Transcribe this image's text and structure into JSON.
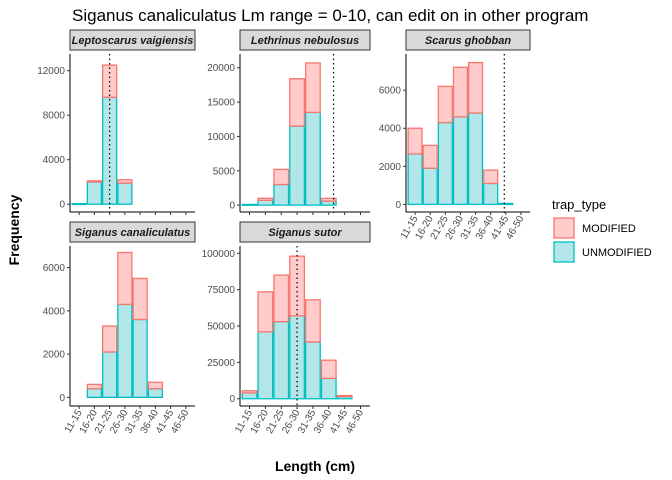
{
  "chart_data": {
    "type": "bar",
    "title": "Siganus canaliculatus Lm range = 0-10, can edit on in other program",
    "xlabel": "Length (cm)",
    "ylabel": "Frequency",
    "categories": [
      "11-15",
      "16-20",
      "21-25",
      "26-30",
      "31-35",
      "36-40",
      "41-45",
      "46-50"
    ],
    "legend": {
      "title": "trap_type",
      "position": "right",
      "entries": [
        {
          "name": "MODIFIED",
          "fill": "#ffcccb",
          "stroke": "#f8766d"
        },
        {
          "name": "UNMODIFIED",
          "fill": "#b3e6e8",
          "stroke": "#00bfc4"
        }
      ]
    },
    "stacked": true,
    "grid": false,
    "panels": [
      {
        "name": "Leptoscarus vaigiensis",
        "ylim": [
          -700,
          13500
        ],
        "yticks": [
          0,
          4000,
          8000,
          12000
        ],
        "lm_marker": 21.5,
        "series": [
          {
            "name": "UNMODIFIED",
            "values": [
              50,
              2000,
              9600,
              1900,
              0,
              0,
              0,
              0
            ]
          },
          {
            "name": "MODIFIED",
            "values": [
              0,
              100,
              2900,
              300,
              0,
              0,
              0,
              0
            ]
          }
        ]
      },
      {
        "name": "Lethrinus nebulosus",
        "ylim": [
          -1000,
          22000
        ],
        "yticks": [
          0,
          5000,
          10000,
          15000,
          20000
        ],
        "lm_marker": 38,
        "series": [
          {
            "name": "UNMODIFIED",
            "values": [
              100,
              700,
              3000,
              11500,
              13500,
              600,
              0,
              0
            ]
          },
          {
            "name": "MODIFIED",
            "values": [
              0,
              300,
              2200,
              6900,
              7200,
              400,
              0,
              0
            ]
          }
        ]
      },
      {
        "name": "Scarus ghobban",
        "ylim": [
          -400,
          7900
        ],
        "yticks": [
          0,
          2000,
          4000,
          6000
        ],
        "lm_marker": 41,
        "series": [
          {
            "name": "UNMODIFIED",
            "values": [
              2650,
              1900,
              4300,
              4600,
              4800,
              1100,
              50,
              0
            ]
          },
          {
            "name": "MODIFIED",
            "values": [
              1350,
              1200,
              1900,
              2600,
              2650,
              700,
              0,
              0
            ]
          }
        ]
      },
      {
        "name": "Siganus canaliculatus",
        "ylim": [
          -400,
          7000
        ],
        "yticks": [
          0,
          2000,
          4000,
          6000
        ],
        "lm_marker": null,
        "series": [
          {
            "name": "UNMODIFIED",
            "values": [
              0,
              400,
              2100,
              4300,
              3600,
              400,
              0,
              0
            ]
          },
          {
            "name": "MODIFIED",
            "values": [
              0,
              200,
              1200,
              2400,
              1900,
              300,
              0,
              0
            ]
          }
        ]
      },
      {
        "name": "Siganus sutor",
        "ylim": [
          -5000,
          105000
        ],
        "yticks": [
          0,
          25000,
          50000,
          75000,
          100000
        ],
        "lm_marker": 26.5,
        "series": [
          {
            "name": "UNMODIFIED",
            "values": [
              4000,
              46000,
              53000,
              57000,
              39000,
              14000,
              1500,
              0
            ]
          },
          {
            "name": "MODIFIED",
            "values": [
              1500,
              27500,
              32000,
              41000,
              29000,
              12500,
              700,
              0
            ]
          }
        ]
      }
    ]
  }
}
